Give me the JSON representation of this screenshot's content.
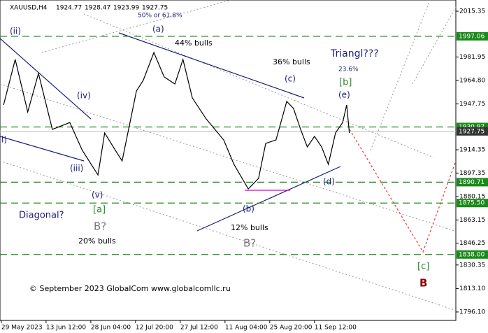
{
  "chart_data": {
    "type": "line",
    "header": {
      "symbol": "XAUUSD,H4",
      "ohlc": [
        1924.77,
        1928.47,
        1923.99,
        1927.75
      ]
    },
    "x": [
      0.05,
      0.31,
      0.59,
      0.83,
      1.14,
      1.53,
      1.81,
      2.16,
      2.31,
      2.55,
      2.7,
      3.02,
      3.17,
      3.41,
      3.64,
      3.88,
      4.06,
      4.27,
      4.58,
      4.97,
      5.2,
      5.52,
      5.75,
      5.91,
      6.14,
      6.38,
      6.53,
      6.69,
      6.84,
      7.0,
      7.16,
      7.31,
      7.47,
      7.63,
      7.72,
      7.78
    ],
    "series": [
      {
        "color": "#000000",
        "values": [
          1947.0,
          1980.2,
          1941.9,
          1970.0,
          1929.2,
          1934.2,
          1913.9,
          1896.0,
          1926.6,
          1913.9,
          1906.2,
          1957.2,
          1964.8,
          1985.2,
          1967.4,
          1962.3,
          1980.2,
          1952.1,
          1936.8,
          1921.5,
          1903.7,
          1885.8,
          1893.5,
          1919.0,
          1921.5,
          1949.6,
          1944.5,
          1929.2,
          1916.4,
          1924.1,
          1916.4,
          1903.7,
          1926.6,
          1934.2,
          1947.0,
          1926.6
        ]
      }
    ],
    "xlim": [
      -0.03,
      10.16
    ],
    "xticks": [
      {
        "value": 0,
        "label": "29 May 2023"
      },
      {
        "value": 1,
        "label": "13 Jun 12:00"
      },
      {
        "value": 2,
        "label": "28 Jun 04:00"
      },
      {
        "value": 3,
        "label": "12 Jul 20:00"
      },
      {
        "value": 4,
        "label": "27 Jul 12:00"
      },
      {
        "value": 5,
        "label": "11 Aug 04:00"
      },
      {
        "value": 6,
        "label": "25 Aug 20:00"
      },
      {
        "value": 7,
        "label": "11 Sep 12:00"
      }
    ],
    "ylim": [
      1789.95,
      2023.51
    ],
    "yticks": [
      2015.35,
      1981.95,
      {
        "value": 1964.8,
        "label": "1964.80"
      },
      1947.75,
      1914.35,
      1897.35,
      1880.15,
      1863.15,
      1846.25,
      1830.35,
      {
        "value": 1813.1,
        "label": "1813.10"
      },
      {
        "value": 1796.1,
        "label": "1796.10"
      }
    ],
    "levels": [
      1997.06,
      1930.97,
      1890.71,
      {
        "value": 1875.5,
        "label": "1875.50"
      },
      {
        "value": 1838,
        "label": "1838.00"
      }
    ],
    "level_color": "#1a8a1a",
    "current_price": 1927.75,
    "annotations": [
      {
        "text": "(ii)",
        "color": "#1c1c7a"
      },
      {
        "text": "(a)",
        "color": "#1c1c7a"
      },
      {
        "text": "50% or 61.8%",
        "color": "#1c1c7a"
      },
      {
        "text": "44% bulls",
        "color": "#000000"
      },
      {
        "text": "36% bulls",
        "color": "#000000"
      },
      {
        "text": "Triangl???",
        "color": "#1c1c7a"
      },
      {
        "text": "23.6%",
        "color": "#1c1c7a"
      },
      {
        "text": "[b]",
        "color": "#2a8a2a"
      },
      {
        "text": "(c)",
        "color": "#1c1c7a"
      },
      {
        "text": "(e)",
        "color": "#1c1c7a"
      },
      {
        "text": "(iv)",
        "color": "#1c1c7a"
      },
      {
        "text": "i)",
        "color": "#1c1c7a"
      },
      {
        "text": "(iii)",
        "color": "#1c1c7a"
      },
      {
        "text": "(v)",
        "color": "#1c1c7a"
      },
      {
        "text": "[a]",
        "color": "#2a8a2a"
      },
      {
        "text": "B?",
        "color": "#777777"
      },
      {
        "text": "Diagonal?",
        "color": "#1c1c7a"
      },
      {
        "text": "20% bulls",
        "color": "#000000"
      },
      {
        "text": "(d)",
        "color": "#1c1c7a"
      },
      {
        "text": "(b)",
        "color": "#1c1c7a"
      },
      {
        "text": "12% bulls",
        "color": "#000000"
      },
      {
        "text": "B?",
        "color": "#777777"
      },
      {
        "text": "[c]",
        "color": "#2a8a2a"
      },
      {
        "text": "B",
        "color": "#8b0000"
      },
      {
        "text": "© September 2023 GlobalCom www.globalcomllc.ru",
        "color": "#000000"
      }
    ]
  }
}
